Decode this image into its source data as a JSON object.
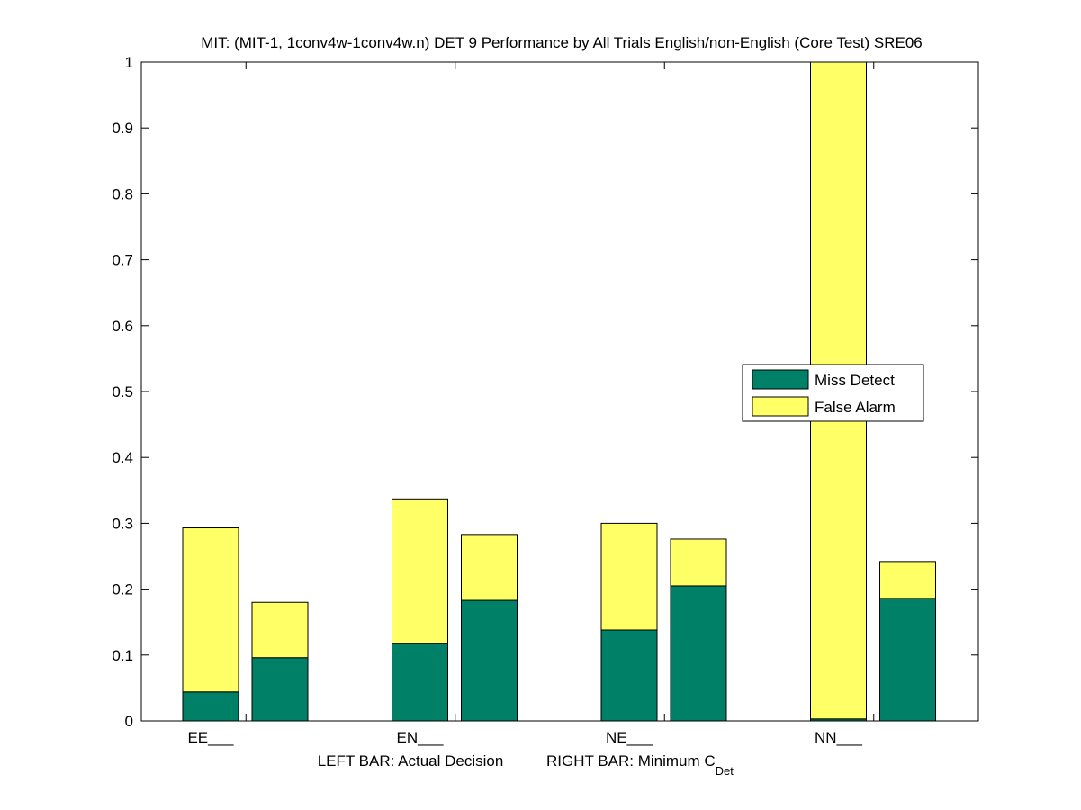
{
  "chart_data": {
    "type": "bar",
    "stacked": true,
    "title": "MIT: (MIT-1, 1conv4w-1conv4w.n) DET 9 Performance by All Trials English/non-English (Core Test) SRE06",
    "xlabel_left": "LEFT BAR: Actual Decision",
    "xlabel_right_main": "RIGHT BAR: Minimum C",
    "xlabel_right_sub": "Det",
    "ylim": [
      0,
      1
    ],
    "yticks": [
      "0",
      "0.1",
      "0.2",
      "0.3",
      "0.4",
      "0.5",
      "0.6",
      "0.7",
      "0.8",
      "0.9",
      "1"
    ],
    "categories": [
      "EE___",
      "EN___",
      "NE___",
      "NN___"
    ],
    "bar_roles": [
      "Actual Decision",
      "Minimum C_Det"
    ],
    "series": [
      {
        "name": "Miss Detect",
        "color": "#008066",
        "actual": [
          0.044,
          0.118,
          0.138,
          0.003
        ],
        "minimum": [
          0.096,
          0.183,
          0.205,
          0.186
        ]
      },
      {
        "name": "False Alarm",
        "color": "#ffff66",
        "actual": [
          0.249,
          0.219,
          0.162,
          0.997
        ],
        "minimum": [
          0.084,
          0.1,
          0.071,
          0.056
        ]
      }
    ],
    "legend": {
      "placement": "right-middle"
    },
    "grid": false
  }
}
